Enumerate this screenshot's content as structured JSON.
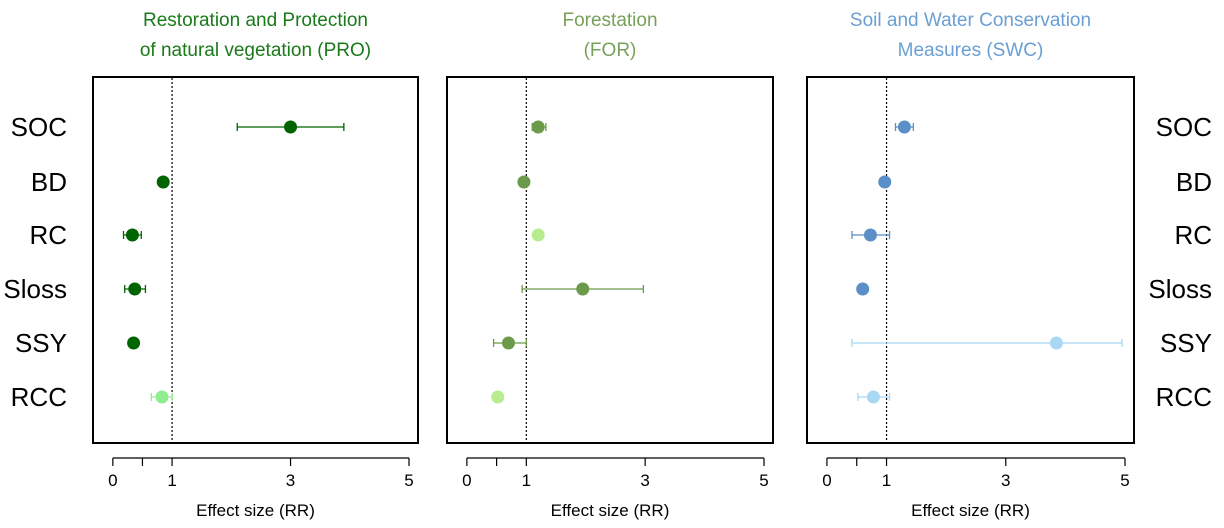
{
  "chart_data": [
    {
      "type": "scatter",
      "subtype": "forest-plot",
      "title_lines": [
        "Restoration and Protection",
        "of natural vegetation (PRO)"
      ],
      "title_color": "#1a7a1a",
      "xlabel": "Effect size (RR)",
      "xlim": [
        -0.2,
        5
      ],
      "xticks": [
        0,
        0.5,
        1,
        3,
        5
      ],
      "xtick_labels": [
        "0",
        "",
        "1",
        "3",
        "5"
      ],
      "reference_line": 1,
      "row_labels_side": "left",
      "points": [
        {
          "label": "SOC",
          "value": 3.0,
          "ci_low": 2.1,
          "ci_high": 3.9,
          "color": "#006400"
        },
        {
          "label": "BD",
          "value": 0.85,
          "ci_low": 0.8,
          "ci_high": 0.9,
          "color": "#006400"
        },
        {
          "label": "RC",
          "value": 0.33,
          "ci_low": 0.18,
          "ci_high": 0.48,
          "color": "#006400"
        },
        {
          "label": "Sloss",
          "value": 0.37,
          "ci_low": 0.2,
          "ci_high": 0.55,
          "color": "#006400"
        },
        {
          "label": "SSY",
          "value": 0.35,
          "ci_low": 0.3,
          "ci_high": 0.4,
          "color": "#006400"
        },
        {
          "label": "RCC",
          "value": 0.83,
          "ci_low": 0.65,
          "ci_high": 1.0,
          "color": "#90ee90"
        }
      ]
    },
    {
      "type": "scatter",
      "subtype": "forest-plot",
      "title_lines": [
        "Forestation",
        "(FOR)"
      ],
      "title_color": "#77a05a",
      "xlabel": "Effect size (RR)",
      "xlim": [
        -0.2,
        5
      ],
      "xticks": [
        0,
        0.5,
        1,
        3,
        5
      ],
      "xtick_labels": [
        "0",
        "",
        "1",
        "3",
        "5"
      ],
      "reference_line": 1,
      "row_labels_side": "none",
      "points": [
        {
          "label": "SOC",
          "value": 1.2,
          "ci_low": 1.1,
          "ci_high": 1.33,
          "color": "#6b9a4b"
        },
        {
          "label": "BD",
          "value": 0.96,
          "ci_low": 0.92,
          "ci_high": 1.0,
          "color": "#6b9a4b"
        },
        {
          "label": "RC",
          "value": 1.2,
          "ci_low": 1.15,
          "ci_high": 1.25,
          "color": "#b8ec8f"
        },
        {
          "label": "Sloss",
          "value": 1.95,
          "ci_low": 0.93,
          "ci_high": 2.97,
          "color": "#6b9a4b"
        },
        {
          "label": "SSY",
          "value": 0.7,
          "ci_low": 0.45,
          "ci_high": 1.0,
          "color": "#6b9a4b"
        },
        {
          "label": "RCC",
          "value": 0.52,
          "ci_low": 0.47,
          "ci_high": 0.57,
          "color": "#b8ec8f"
        }
      ]
    },
    {
      "type": "scatter",
      "subtype": "forest-plot",
      "title_lines": [
        "Soil and Water Conservation",
        "Measures (SWC)"
      ],
      "title_color": "#6a9fd4",
      "xlabel": "Effect size (RR)",
      "xlim": [
        -0.2,
        5
      ],
      "xticks": [
        0,
        0.5,
        1,
        3,
        5
      ],
      "xtick_labels": [
        "0",
        "",
        "1",
        "3",
        "5"
      ],
      "reference_line": 1,
      "row_labels_side": "right",
      "points": [
        {
          "label": "SOC",
          "value": 1.3,
          "ci_low": 1.15,
          "ci_high": 1.45,
          "color": "#5b8fc7"
        },
        {
          "label": "BD",
          "value": 0.97,
          "ci_low": 0.93,
          "ci_high": 1.01,
          "color": "#5b8fc7"
        },
        {
          "label": "RC",
          "value": 0.73,
          "ci_low": 0.42,
          "ci_high": 1.05,
          "color": "#5b8fc7"
        },
        {
          "label": "Sloss",
          "value": 0.6,
          "ci_low": 0.55,
          "ci_high": 0.65,
          "color": "#5b8fc7"
        },
        {
          "label": "SSY",
          "value": 3.85,
          "ci_low": 0.42,
          "ci_high": 4.95,
          "color": "#a9d8f5"
        },
        {
          "label": "RCC",
          "value": 0.78,
          "ci_low": 0.52,
          "ci_high": 1.05,
          "color": "#a9d8f5"
        }
      ]
    }
  ]
}
